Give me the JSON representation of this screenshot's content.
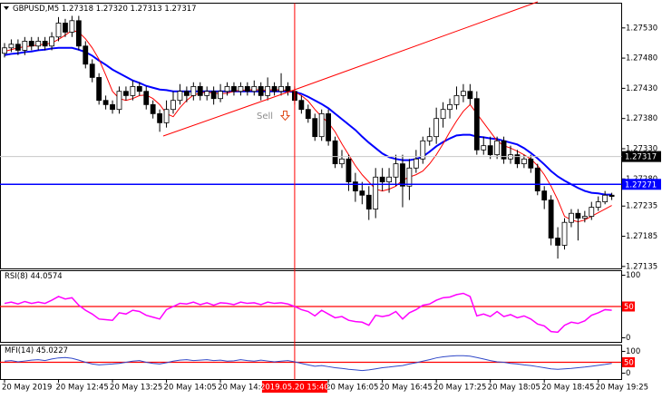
{
  "chart_data": [
    {
      "type": "candlestick",
      "title": "GBPUSD,M5  1.27318 1.27320 1.27313 1.27317",
      "sell_label": "Sell",
      "categories": [
        "20 May 2019",
        null,
        null,
        null,
        null,
        null,
        null,
        null,
        "20 May 12:45",
        null,
        null,
        null,
        null,
        null,
        null,
        null,
        "20 May 13:25",
        null,
        null,
        null,
        null,
        null,
        null,
        null,
        "20 May 14:05",
        null,
        null,
        null,
        null,
        null,
        null,
        null,
        "20 May 14:45",
        null,
        null,
        null,
        null,
        null,
        null,
        null,
        null,
        null,
        null,
        "2019.05.20 15:40",
        null,
        null,
        null,
        null,
        "20 May 16:05",
        null,
        null,
        null,
        null,
        null,
        null,
        null,
        "20 May 16:45",
        null,
        null,
        null,
        null,
        null,
        null,
        null,
        "20 May 17:25",
        null,
        null,
        null,
        null,
        null,
        null,
        null,
        "20 May 18:05",
        null,
        null,
        null,
        null,
        null,
        null,
        null,
        "20 May 18:45",
        null,
        null,
        null,
        null,
        null,
        null,
        null,
        "20 May 19:25",
        null,
        null
      ],
      "selected": 43,
      "selected_color": "#ff0000",
      "open": [
        1.27488,
        1.27497,
        1.27503,
        1.27493,
        1.27508,
        1.275,
        1.27508,
        1.275,
        1.27515,
        1.27538,
        1.27523,
        1.27542,
        1.275,
        1.2747,
        1.27448,
        1.2741,
        1.27403,
        1.27395,
        1.27425,
        1.27418,
        1.27433,
        1.27425,
        1.27403,
        1.27388,
        1.27373,
        1.27395,
        1.2741,
        1.27425,
        1.27418,
        1.27433,
        1.27418,
        1.27425,
        1.27413,
        1.27425,
        1.27433,
        1.27425,
        1.27433,
        1.27425,
        1.27433,
        1.27418,
        1.27433,
        1.27425,
        1.27433,
        1.27425,
        1.2741,
        1.27395,
        1.2738,
        1.2735,
        1.27388,
        1.27343,
        1.27305,
        1.27313,
        1.27275,
        1.2726,
        1.27253,
        1.2723,
        1.27283,
        1.27275,
        1.27283,
        1.27305,
        1.27268,
        1.27298,
        1.27313,
        1.27343,
        1.2735,
        1.2738,
        1.27395,
        1.27403,
        1.27418,
        1.27425,
        1.27413,
        1.27328,
        1.27335,
        1.2732,
        1.27343,
        1.27313,
        1.2732,
        1.27305,
        1.27313,
        1.27298,
        1.2726,
        1.27245,
        1.27182,
        1.2717,
        1.27208,
        1.27223,
        1.27215,
        1.27218,
        1.27233,
        1.27242,
        1.27253
      ],
      "high": [
        1.27505,
        1.27511,
        1.27511,
        1.27515,
        1.27515,
        1.27515,
        1.27515,
        1.27523,
        1.27548,
        1.27545,
        1.2755,
        1.2755,
        1.27508,
        1.27478,
        1.27455,
        1.27418,
        1.2741,
        1.27433,
        1.27433,
        1.27443,
        1.2744,
        1.27433,
        1.2741,
        1.27395,
        1.2741,
        1.27425,
        1.27437,
        1.27433,
        1.2744,
        1.2744,
        1.27433,
        1.27433,
        1.27437,
        1.2744,
        1.2744,
        1.2744,
        1.2744,
        1.27443,
        1.2744,
        1.27448,
        1.2744,
        1.27455,
        1.2744,
        1.27433,
        1.27418,
        1.27403,
        1.27388,
        1.27395,
        1.27395,
        1.2735,
        1.27328,
        1.2732,
        1.2729,
        1.27275,
        1.27268,
        1.27298,
        1.27298,
        1.27298,
        1.2732,
        1.2732,
        1.27313,
        1.27328,
        1.2735,
        1.27365,
        1.27398,
        1.27407,
        1.27413,
        1.27433,
        1.27437,
        1.27437,
        1.27425,
        1.2735,
        1.2735,
        1.2735,
        1.2735,
        1.27335,
        1.27328,
        1.2732,
        1.2732,
        1.27305,
        1.27268,
        1.27253,
        1.272,
        1.27215,
        1.2723,
        1.2723,
        1.27227,
        1.27242,
        1.27251,
        1.2726,
        1.27257
      ],
      "low": [
        1.27481,
        1.2749,
        1.27485,
        1.27485,
        1.27493,
        1.27493,
        1.27493,
        1.27493,
        1.27508,
        1.27515,
        1.27515,
        1.27493,
        1.27463,
        1.2744,
        1.27403,
        1.27395,
        1.27388,
        1.27388,
        1.2741,
        1.2741,
        1.27418,
        1.27395,
        1.2738,
        1.27358,
        1.27365,
        1.27388,
        1.27403,
        1.27407,
        1.2741,
        1.2741,
        1.2741,
        1.27403,
        1.27407,
        1.27418,
        1.27418,
        1.27418,
        1.27418,
        1.27418,
        1.2741,
        1.2741,
        1.27418,
        1.27418,
        1.27418,
        1.27403,
        1.27388,
        1.27373,
        1.27343,
        1.27343,
        1.27335,
        1.27298,
        1.27298,
        1.2726,
        1.27242,
        1.27238,
        1.27212,
        1.27215,
        1.2726,
        1.27257,
        1.27268,
        1.27233,
        1.27245,
        1.2729,
        1.27305,
        1.27335,
        1.27338,
        1.27365,
        1.2738,
        1.27395,
        1.27407,
        1.27403,
        1.2732,
        1.2732,
        1.27313,
        1.27313,
        1.27305,
        1.27305,
        1.27298,
        1.27298,
        1.2729,
        1.27253,
        1.2723,
        1.2717,
        1.27148,
        1.27163,
        1.272,
        1.27178,
        1.27208,
        1.27212,
        1.27227,
        1.27238,
        1.27245
      ],
      "close": [
        1.27497,
        1.27503,
        1.27493,
        1.27508,
        1.275,
        1.27508,
        1.275,
        1.27515,
        1.27538,
        1.27523,
        1.27542,
        1.275,
        1.2747,
        1.27448,
        1.2741,
        1.27403,
        1.27395,
        1.27425,
        1.27418,
        1.27433,
        1.27425,
        1.27403,
        1.27388,
        1.27373,
        1.27395,
        1.2741,
        1.27425,
        1.27418,
        1.27433,
        1.27418,
        1.27425,
        1.27413,
        1.27425,
        1.27433,
        1.27425,
        1.27433,
        1.27425,
        1.27433,
        1.27418,
        1.27433,
        1.27425,
        1.27433,
        1.27425,
        1.2741,
        1.27395,
        1.2738,
        1.2735,
        1.27388,
        1.27343,
        1.27305,
        1.27313,
        1.27275,
        1.2726,
        1.27253,
        1.2723,
        1.27283,
        1.27275,
        1.27283,
        1.27305,
        1.27268,
        1.27298,
        1.27313,
        1.27343,
        1.2735,
        1.2738,
        1.27395,
        1.27403,
        1.27418,
        1.27425,
        1.27413,
        1.27328,
        1.27335,
        1.2732,
        1.27343,
        1.27313,
        1.2732,
        1.27305,
        1.27313,
        1.27298,
        1.2726,
        1.27245,
        1.27182,
        1.2717,
        1.27208,
        1.27223,
        1.27215,
        1.27218,
        1.27233,
        1.27242,
        1.27253,
        1.27251
      ],
      "up_color": "#ffffff",
      "down_color": "#000000",
      "edge_color": "#000000",
      "overlays": [
        {
          "color": "#0000ff",
          "width": 2,
          "values": [
            1.27485,
            1.27487,
            1.27488,
            1.2749,
            1.27491,
            1.27493,
            1.27494,
            1.27496,
            1.27497,
            1.27497,
            1.27497,
            1.27494,
            1.2749,
            1.27484,
            1.27476,
            1.27469,
            1.27461,
            1.27455,
            1.27449,
            1.27443,
            1.27439,
            1.27434,
            1.27431,
            1.27428,
            1.27427,
            1.27425,
            1.27425,
            1.27425,
            1.27425,
            1.27425,
            1.27425,
            1.27425,
            1.27425,
            1.27425,
            1.27425,
            1.27425,
            1.27425,
            1.27425,
            1.27425,
            1.27425,
            1.27425,
            1.27425,
            1.27425,
            1.27424,
            1.27421,
            1.27416,
            1.2741,
            1.27404,
            1.27397,
            1.27388,
            1.27379,
            1.2737,
            1.27361,
            1.2735,
            1.2734,
            1.27331,
            1.27322,
            1.27316,
            1.27313,
            1.27311,
            1.27311,
            1.27313,
            1.27317,
            1.27325,
            1.27334,
            1.27341,
            1.27347,
            1.27352,
            1.27353,
            1.27353,
            1.2735,
            1.27349,
            1.27347,
            1.27346,
            1.27343,
            1.2734,
            1.27337,
            1.27331,
            1.27323,
            1.27314,
            1.27304,
            1.27293,
            1.27284,
            1.27277,
            1.27271,
            1.27265,
            1.2726,
            1.27257,
            1.27256,
            1.27254,
            1.27254
          ]
        },
        {
          "color": "#ff0000",
          "width": 1,
          "values": [
            1.27491,
            1.27494,
            1.27497,
            1.27499,
            1.275,
            1.27502,
            1.27503,
            1.27505,
            1.27511,
            1.27518,
            1.27526,
            1.27523,
            1.27512,
            1.27497,
            1.27478,
            1.27452,
            1.27425,
            1.27413,
            1.2741,
            1.27413,
            1.27418,
            1.27419,
            1.27413,
            1.27403,
            1.27388,
            1.27383,
            1.27398,
            1.2741,
            1.27419,
            1.27422,
            1.27424,
            1.27422,
            1.27421,
            1.27422,
            1.27425,
            1.27427,
            1.27427,
            1.27428,
            1.27427,
            1.27427,
            1.27428,
            1.27427,
            1.27427,
            1.27424,
            1.27418,
            1.27409,
            1.27395,
            1.27383,
            1.27373,
            1.27358,
            1.27338,
            1.2732,
            1.27302,
            1.27287,
            1.27275,
            1.27263,
            1.2726,
            1.27263,
            1.27268,
            1.27278,
            1.27283,
            1.27287,
            1.27293,
            1.27305,
            1.2732,
            1.27338,
            1.27358,
            1.27376,
            1.27392,
            1.27403,
            1.27388,
            1.27373,
            1.27358,
            1.27343,
            1.27335,
            1.27331,
            1.27326,
            1.2732,
            1.27313,
            1.27302,
            1.27287,
            1.27268,
            1.27245,
            1.27218,
            1.27212,
            1.27209,
            1.27212,
            1.27218,
            1.27224,
            1.2723,
            1.27236
          ]
        }
      ],
      "hlines": [
        {
          "value": 1.27271,
          "color": "#0000ff"
        }
      ],
      "bid": 1.27317,
      "ylim": [
        1.27131,
        1.27571
      ],
      "yticks": [
        {
          "value": 1.2753,
          "label": "1.27530"
        },
        {
          "value": 1.2748,
          "label": "1.27480"
        },
        {
          "value": 1.2743,
          "label": "1.27430"
        },
        {
          "value": 1.2738,
          "label": "1.27380"
        },
        {
          "value": 1.2733,
          "label": "1.27330"
        },
        {
          "value": 1.2728,
          "label": "1.27280"
        },
        1.27235,
        1.27185,
        1.27135
      ]
    },
    {
      "type": "line",
      "title": "RSI(8) 44.0574",
      "color": "#ff00ff",
      "width": 1.5,
      "values": [
        55,
        57,
        54,
        58,
        55,
        57,
        55,
        60,
        66,
        62,
        64,
        52,
        44,
        38,
        30,
        29,
        28,
        40,
        38,
        44,
        42,
        36,
        33,
        30,
        45,
        50,
        55,
        54,
        57,
        53,
        56,
        52,
        56,
        55,
        53,
        57,
        55,
        56,
        53,
        57,
        55,
        56,
        54,
        50,
        45,
        42,
        35,
        44,
        38,
        32,
        34,
        28,
        26,
        25,
        20,
        36,
        34,
        36,
        42,
        30,
        40,
        45,
        52,
        54,
        60,
        64,
        65,
        69,
        71,
        66,
        35,
        38,
        34,
        42,
        34,
        37,
        32,
        35,
        30,
        22,
        19,
        10,
        9,
        20,
        25,
        23,
        27,
        36,
        40,
        45,
        44.0574
      ],
      "levels": [
        50
      ],
      "level_color": "#ff0000",
      "ylim": [
        -7.2,
        107.2
      ],
      "yticks": [
        100,
        0
      ]
    },
    {
      "type": "line",
      "title": "MFI(14) 45.0227",
      "color": "#3048c8",
      "width": 1,
      "values": [
        55,
        58,
        52,
        56,
        60,
        62,
        58,
        65,
        70,
        72,
        68,
        60,
        50,
        42,
        38,
        40,
        42,
        45,
        50,
        55,
        58,
        50,
        45,
        42,
        48,
        55,
        60,
        62,
        58,
        60,
        62,
        58,
        60,
        55,
        57,
        62,
        58,
        55,
        60,
        56,
        52,
        55,
        58,
        52,
        45,
        38,
        32,
        35,
        30,
        25,
        22,
        18,
        15,
        12,
        15,
        20,
        25,
        28,
        32,
        35,
        42,
        48,
        55,
        62,
        70,
        75,
        78,
        80,
        80,
        78,
        72,
        65,
        58,
        52,
        50,
        45,
        42,
        38,
        35,
        30,
        25,
        20,
        18,
        20,
        22,
        25,
        28,
        32,
        36,
        40,
        45.0227
      ],
      "levels": [
        50
      ],
      "level_color": "#ff0000",
      "ylim": [
        -29,
        129
      ],
      "yticks": [
        100,
        0
      ]
    }
  ]
}
